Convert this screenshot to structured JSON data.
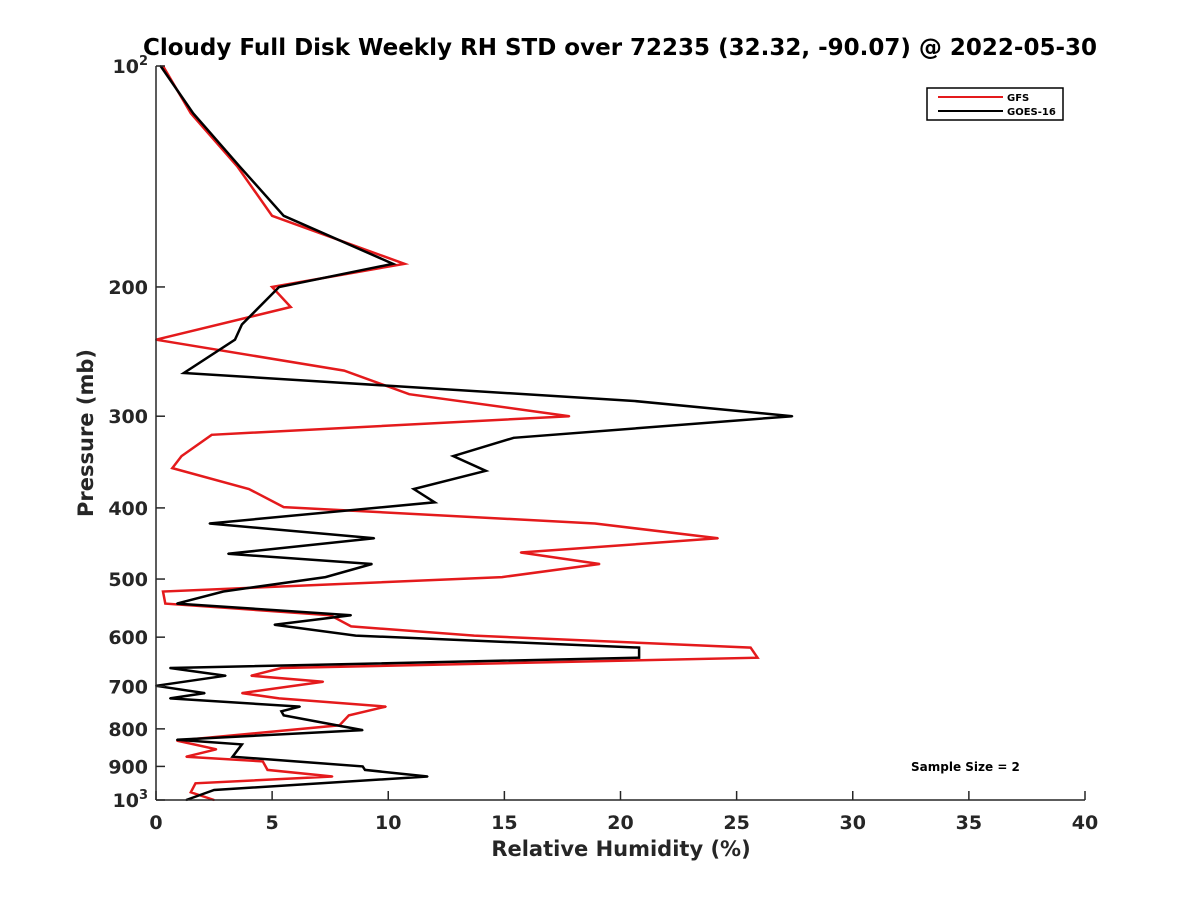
{
  "chart_data": {
    "type": "line",
    "title": "Cloudy Full Disk Weekly RH STD over 72235 (32.32, -90.07) @ 2022-05-30",
    "xlabel": "Relative Humidity (%)",
    "ylabel": "Pressure (mb)",
    "xlim": [
      0,
      40
    ],
    "ylim": [
      100,
      1000
    ],
    "yscale": "log",
    "y_reversed": true,
    "xticks": [
      0,
      5,
      10,
      15,
      20,
      25,
      30,
      35,
      40
    ],
    "yticks": [
      {
        "value": 100,
        "label": "10",
        "sup": "2"
      },
      {
        "value": 200,
        "label": "200",
        "sup": ""
      },
      {
        "value": 300,
        "label": "300",
        "sup": ""
      },
      {
        "value": 400,
        "label": "400",
        "sup": ""
      },
      {
        "value": 500,
        "label": "500",
        "sup": ""
      },
      {
        "value": 600,
        "label": "600",
        "sup": ""
      },
      {
        "value": 700,
        "label": "700",
        "sup": ""
      },
      {
        "value": 800,
        "label": "800",
        "sup": ""
      },
      {
        "value": 900,
        "label": "900",
        "sup": ""
      },
      {
        "value": 1000,
        "label": "10",
        "sup": "3"
      }
    ],
    "grid": false,
    "legend_position": "top-right",
    "annotation": "Sample Size = 2",
    "series": [
      {
        "name": "GFS",
        "color": "#e41a1c",
        "points": [
          [
            0.3,
            100
          ],
          [
            1.5,
            116
          ],
          [
            3.5,
            137
          ],
          [
            5.0,
            160
          ],
          [
            10.7,
            186
          ],
          [
            5.0,
            200
          ],
          [
            5.8,
            213
          ],
          [
            0.0,
            236
          ],
          [
            8.1,
            260
          ],
          [
            10.9,
            280
          ],
          [
            17.8,
            300
          ],
          [
            2.4,
            318
          ],
          [
            1.1,
            340
          ],
          [
            0.7,
            353
          ],
          [
            4.0,
            377
          ],
          [
            5.5,
            399
          ],
          [
            18.9,
            420
          ],
          [
            24.2,
            440
          ],
          [
            15.7,
            460
          ],
          [
            19.1,
            477
          ],
          [
            14.9,
            497
          ],
          [
            0.3,
            520
          ],
          [
            0.4,
            540
          ],
          [
            7.5,
            560
          ],
          [
            8.4,
            580
          ],
          [
            13.7,
            597
          ],
          [
            25.6,
            620
          ],
          [
            25.9,
            640
          ],
          [
            5.4,
            661
          ],
          [
            4.1,
            677
          ],
          [
            7.2,
            690
          ],
          [
            3.7,
            715
          ],
          [
            5.3,
            727
          ],
          [
            9.9,
            746
          ],
          [
            8.3,
            767
          ],
          [
            7.9,
            791
          ],
          [
            0.9,
            830
          ],
          [
            2.6,
            853
          ],
          [
            1.3,
            873
          ],
          [
            4.6,
            886
          ],
          [
            4.8,
            910
          ],
          [
            7.6,
            929
          ],
          [
            1.7,
            949
          ],
          [
            1.5,
            976
          ],
          [
            2.5,
            1000
          ]
        ]
      },
      {
        "name": "GOES-16",
        "color": "#000000",
        "points": [
          [
            0.2,
            100
          ],
          [
            1.6,
            116
          ],
          [
            3.6,
            137
          ],
          [
            5.5,
            160
          ],
          [
            10.2,
            186
          ],
          [
            5.3,
            200
          ],
          [
            3.7,
            225
          ],
          [
            3.4,
            236
          ],
          [
            1.2,
            262
          ],
          [
            20.6,
            286
          ],
          [
            27.4,
            300
          ],
          [
            15.4,
            321
          ],
          [
            12.8,
            340
          ],
          [
            14.2,
            356
          ],
          [
            11.1,
            377
          ],
          [
            12.0,
            393
          ],
          [
            2.3,
            420
          ],
          [
            9.4,
            440
          ],
          [
            3.1,
            462
          ],
          [
            9.3,
            477
          ],
          [
            7.3,
            497
          ],
          [
            2.9,
            520
          ],
          [
            0.9,
            540
          ],
          [
            8.4,
            560
          ],
          [
            5.1,
            577
          ],
          [
            8.6,
            597
          ],
          [
            20.8,
            620
          ],
          [
            20.8,
            640
          ],
          [
            0.6,
            661
          ],
          [
            3.0,
            677
          ],
          [
            0.0,
            699
          ],
          [
            2.1,
            715
          ],
          [
            0.6,
            727
          ],
          [
            6.2,
            746
          ],
          [
            5.4,
            757
          ],
          [
            5.5,
            767
          ],
          [
            8.9,
            803
          ],
          [
            0.9,
            828
          ],
          [
            3.7,
            840
          ],
          [
            3.3,
            873
          ],
          [
            8.9,
            900
          ],
          [
            9.0,
            910
          ],
          [
            11.7,
            929
          ],
          [
            2.5,
            969
          ],
          [
            1.3,
            1000
          ]
        ]
      }
    ]
  }
}
